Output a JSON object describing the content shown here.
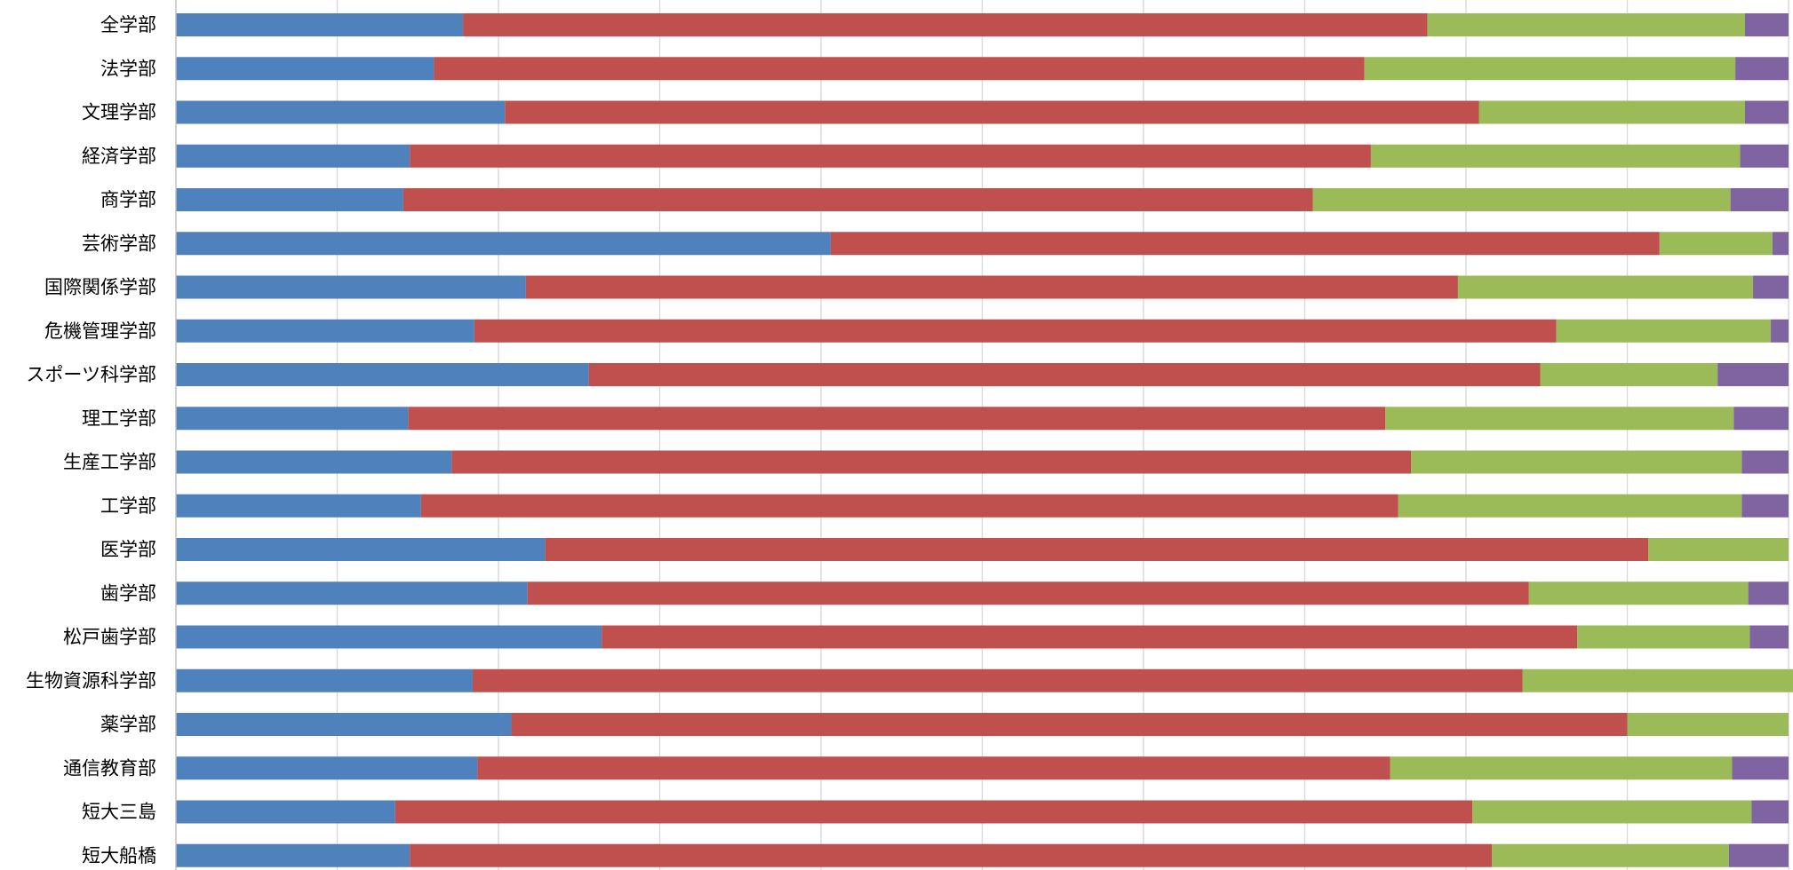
{
  "chart_data": {
    "type": "bar",
    "orientation": "horizontal",
    "stacked": "percent",
    "categories": [
      "全学部",
      "法学部",
      "文理学部",
      "経済学部",
      "商学部",
      "芸術学部",
      "国際関係学部",
      "危機管理学部",
      "スポーツ科学部",
      "理工学部",
      "生産工学部",
      "工学部",
      "医学部",
      "歯学部",
      "松戸歯学部",
      "生物資源科学部",
      "薬学部",
      "通信教育部",
      "短大三島",
      "短大船橋"
    ],
    "series": [
      {
        "values": [
          17.8,
          16.0,
          20.4,
          14.5,
          14.1,
          40.6,
          21.7,
          18.5,
          25.6,
          14.4,
          17.1,
          15.2,
          22.9,
          21.8,
          26.4,
          18.4,
          20.8,
          18.7,
          13.6,
          14.5
        ]
      },
      {
        "values": [
          59.8,
          57.7,
          60.4,
          59.6,
          56.4,
          51.4,
          57.8,
          67.1,
          59.0,
          60.6,
          59.5,
          60.6,
          68.4,
          62.1,
          60.5,
          65.1,
          69.2,
          56.6,
          66.8,
          67.1
        ]
      },
      {
        "values": [
          19.7,
          23.0,
          16.5,
          22.9,
          25.9,
          7.0,
          18.3,
          13.3,
          11.0,
          21.6,
          20.5,
          21.3,
          8.7,
          13.6,
          10.7,
          16.8,
          10.0,
          21.2,
          17.3,
          14.7
        ]
      },
      {
        "values": [
          2.7,
          3.3,
          2.7,
          3.0,
          3.6,
          1.0,
          2.2,
          1.1,
          4.4,
          3.4,
          2.9,
          2.9,
          0.0,
          2.5,
          2.4,
          1.7,
          0.0,
          3.5,
          2.3,
          3.7
        ]
      }
    ],
    "colors": [
      "#4f81bd",
      "#c0504d",
      "#9bbb59",
      "#8064a2"
    ],
    "xlim": [
      0,
      100
    ],
    "gridlines": "vertical",
    "legend": "none"
  }
}
